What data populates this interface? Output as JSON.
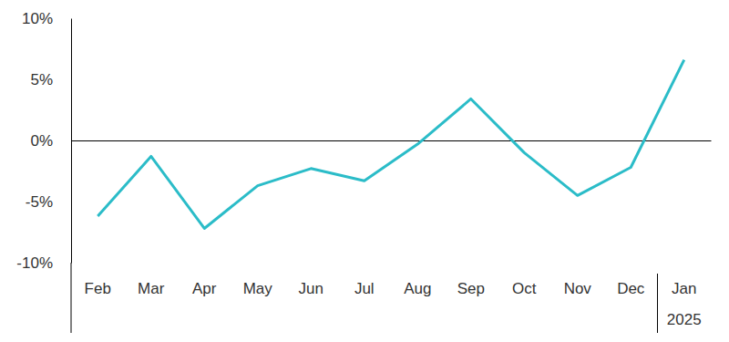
{
  "chart_data": {
    "type": "line",
    "categories": [
      "Feb",
      "Mar",
      "Apr",
      "May",
      "Jun",
      "Jul",
      "Aug",
      "Sep",
      "Oct",
      "Nov",
      "Dec",
      "Jan"
    ],
    "values": [
      -6.2,
      -1.3,
      -7.2,
      -3.7,
      -2.3,
      -3.3,
      -0.3,
      3.4,
      -1.0,
      -4.5,
      -2.2,
      6.6
    ],
    "color": "#2bbcc8",
    "ylim": [
      -10,
      10
    ],
    "yticks": [
      {
        "value": -10,
        "label": "-10%"
      },
      {
        "value": -5,
        "label": "-5%"
      },
      {
        "value": 0,
        "label": "0%"
      },
      {
        "value": 5,
        "label": "5%"
      },
      {
        "value": 10,
        "label": "10%"
      }
    ],
    "grid": false,
    "annotations": [
      {
        "text": "2025",
        "category": "Jan"
      }
    ]
  }
}
